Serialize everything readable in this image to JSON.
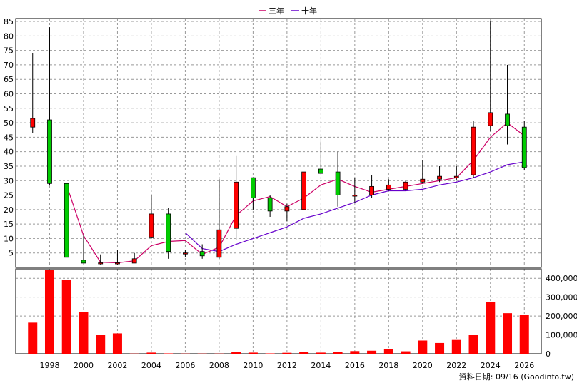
{
  "legend": [
    {
      "name": "三年",
      "color": "#cc0066"
    },
    {
      "name": "十年",
      "color": "#6600cc"
    }
  ],
  "source_note": "資料日期: 09/16 (Goodinfo.tw)",
  "colors": {
    "up": "#ff0000",
    "down": "#00cc00",
    "wick": "#000000",
    "volume": "#ff0000",
    "grid": "#999999"
  },
  "chart_data": [
    {
      "type": "candlestick",
      "ylim": [
        0,
        86
      ],
      "yticks": [
        5,
        10,
        15,
        20,
        25,
        30,
        35,
        40,
        45,
        50,
        55,
        60,
        65,
        70,
        75,
        80,
        85
      ],
      "x_tick_labels": [
        "1998",
        "2000",
        "2002",
        "2004",
        "2006",
        "2008",
        "2010",
        "2012",
        "2014",
        "2016",
        "2018",
        "2020",
        "2022",
        "2024",
        "2026"
      ],
      "x_tick_years": [
        1998,
        2000,
        2002,
        2004,
        2006,
        2008,
        2010,
        2012,
        2014,
        2016,
        2018,
        2020,
        2022,
        2024,
        2026
      ],
      "candles": [
        {
          "year": 1997,
          "open": 48.5,
          "high": 74,
          "low": 46.5,
          "close": 51.5
        },
        {
          "year": 1998,
          "open": 51,
          "high": 83,
          "low": 28.5,
          "close": 29
        },
        {
          "year": 1999,
          "open": 29,
          "high": 29,
          "low": 3.5,
          "close": 3.5
        },
        {
          "year": 2000,
          "open": 2.5,
          "high": 11,
          "low": 1.5,
          "close": 1.5
        },
        {
          "year": 2001,
          "open": 1.5,
          "high": 4.5,
          "low": 1,
          "close": 1.6
        },
        {
          "year": 2002,
          "open": 1.5,
          "high": 6,
          "low": 1,
          "close": 1.6
        },
        {
          "year": 2003,
          "open": 1.5,
          "high": 5,
          "low": 1.5,
          "close": 3
        },
        {
          "year": 2004,
          "open": 10.5,
          "high": 25,
          "low": 10,
          "close": 18.5
        },
        {
          "year": 2005,
          "open": 18.5,
          "high": 20.5,
          "low": 3,
          "close": 5.5
        },
        {
          "year": 2006,
          "open": 5,
          "high": 6,
          "low": 3.5,
          "close": 5
        },
        {
          "year": 2007,
          "open": 5.5,
          "high": 8,
          "low": 3,
          "close": 4
        },
        {
          "year": 2008,
          "open": 3.5,
          "high": 30.5,
          "low": 3,
          "close": 13
        },
        {
          "year": 2009,
          "open": 13.5,
          "high": 38.5,
          "low": 9.5,
          "close": 29.5
        },
        {
          "year": 2010,
          "open": 31,
          "high": 31,
          "low": 20,
          "close": 24
        },
        {
          "year": 2011,
          "open": 24,
          "high": 25,
          "low": 17.5,
          "close": 19.5
        },
        {
          "year": 2012,
          "open": 19.5,
          "high": 22,
          "low": 16,
          "close": 21
        },
        {
          "year": 2013,
          "open": 20,
          "high": 33,
          "low": 20,
          "close": 33
        },
        {
          "year": 2014,
          "open": 34,
          "high": 43.5,
          "low": 32.5,
          "close": 32.5
        },
        {
          "year": 2015,
          "open": 33,
          "high": 40,
          "low": 21,
          "close": 25
        },
        {
          "year": 2016,
          "open": 25,
          "high": 31,
          "low": 22.5,
          "close": 25
        },
        {
          "year": 2017,
          "open": 25,
          "high": 32,
          "low": 24,
          "close": 28
        },
        {
          "year": 2018,
          "open": 27,
          "high": 30.5,
          "low": 26.5,
          "close": 28.5
        },
        {
          "year": 2019,
          "open": 27,
          "high": 30,
          "low": 26.5,
          "close": 29.5
        },
        {
          "year": 2020,
          "open": 29.5,
          "high": 37,
          "low": 29,
          "close": 30.5
        },
        {
          "year": 2021,
          "open": 30.5,
          "high": 35,
          "low": 29.5,
          "close": 31.5
        },
        {
          "year": 2022,
          "open": 31,
          "high": 35,
          "low": 30,
          "close": 31.5
        },
        {
          "year": 2023,
          "open": 32,
          "high": 50.5,
          "low": 31,
          "close": 48.5
        },
        {
          "year": 2024,
          "open": 49,
          "high": 85,
          "low": 47,
          "close": 53.5
        },
        {
          "year": 2025,
          "open": 53,
          "high": 70,
          "low": 42.5,
          "close": 49
        },
        {
          "year": 2026,
          "open": 48.5,
          "high": 50.5,
          "low": 33.5,
          "close": 34.5
        }
      ],
      "series": [
        {
          "name": "三年",
          "color": "#cc0066",
          "points": [
            [
              1999,
              28.5
            ],
            [
              2000,
              11
            ],
            [
              2001,
              1.8
            ],
            [
              2002,
              1.6
            ],
            [
              2003,
              2.3
            ],
            [
              2004,
              7.5
            ],
            [
              2005,
              9
            ],
            [
              2006,
              9.3
            ],
            [
              2007,
              4.5
            ],
            [
              2008,
              7
            ],
            [
              2009,
              18
            ],
            [
              2010,
              23
            ],
            [
              2011,
              24.5
            ],
            [
              2012,
              21
            ],
            [
              2013,
              24
            ],
            [
              2014,
              28.5
            ],
            [
              2015,
              30.5
            ],
            [
              2016,
              28
            ],
            [
              2017,
              26
            ],
            [
              2018,
              27
            ],
            [
              2019,
              28
            ],
            [
              2020,
              29
            ],
            [
              2021,
              30
            ],
            [
              2022,
              31
            ],
            [
              2023,
              37
            ],
            [
              2024,
              45
            ],
            [
              2025,
              50
            ],
            [
              2026,
              45.5
            ]
          ]
        },
        {
          "name": "十年",
          "color": "#6600cc",
          "points": [
            [
              2006,
              12
            ],
            [
              2007,
              6.5
            ],
            [
              2008,
              5.5
            ],
            [
              2009,
              8
            ],
            [
              2010,
              10
            ],
            [
              2011,
              12
            ],
            [
              2012,
              14
            ],
            [
              2013,
              17
            ],
            [
              2014,
              18.5
            ],
            [
              2015,
              20.5
            ],
            [
              2016,
              22.5
            ],
            [
              2017,
              25
            ],
            [
              2018,
              26.5
            ],
            [
              2019,
              26.5
            ],
            [
              2020,
              27
            ],
            [
              2021,
              28.5
            ],
            [
              2022,
              29.5
            ],
            [
              2023,
              31
            ],
            [
              2024,
              33
            ],
            [
              2025,
              35.5
            ],
            [
              2026,
              36.5
            ]
          ]
        }
      ]
    },
    {
      "type": "bar",
      "ylim": [
        0,
        450000
      ],
      "yticks": [
        0,
        100000,
        200000,
        300000,
        400000
      ],
      "ytick_labels": [
        "0",
        "100,000",
        "200,000",
        "300,000",
        "400,000"
      ],
      "x": [
        1997,
        1998,
        1999,
        2000,
        2001,
        2002,
        2003,
        2004,
        2005,
        2006,
        2007,
        2008,
        2009,
        2010,
        2011,
        2012,
        2013,
        2014,
        2015,
        2016,
        2017,
        2018,
        2019,
        2020,
        2021,
        2022,
        2023,
        2024,
        2025,
        2026
      ],
      "values": [
        165000,
        445000,
        390000,
        222000,
        100000,
        108000,
        1000,
        6000,
        2000,
        1000,
        1000,
        1000,
        9000,
        6000,
        2000,
        5000,
        9000,
        6000,
        11000,
        14000,
        16000,
        23000,
        13000,
        70000,
        57000,
        73000,
        100000,
        275000,
        215000,
        207000
      ]
    }
  ]
}
